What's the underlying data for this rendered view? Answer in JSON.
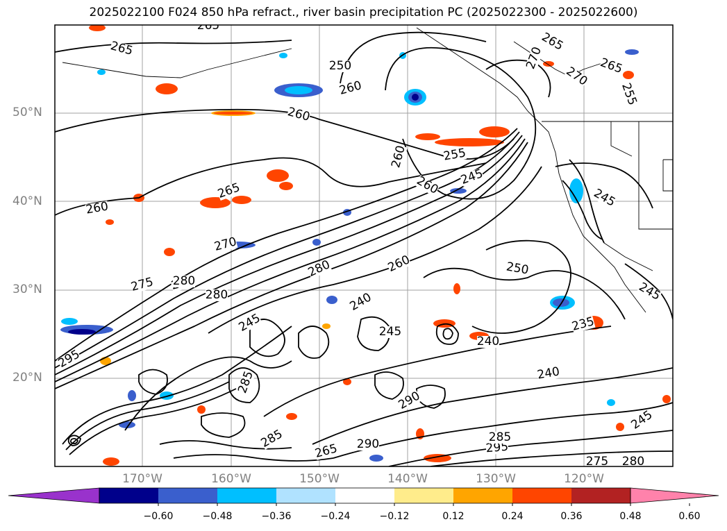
{
  "title": "2025022100 F024 850 hPa refract., river basin precipitation PC (2025022300 - 2025022600)",
  "map": {
    "projection": "plate carree",
    "lat_range": [
      "10°N",
      "60°N"
    ],
    "lon_range": [
      "180°",
      "110°W"
    ],
    "grid": true,
    "lat_labels": [
      "50°N",
      "40°N",
      "30°N",
      "20°N"
    ],
    "lon_labels": [
      "170°W",
      "160°W",
      "150°W",
      "140°W",
      "130°W",
      "120°W"
    ],
    "contour_labels": [
      {
        "text": "265"
      },
      {
        "text": "265"
      },
      {
        "text": "260"
      },
      {
        "text": "260"
      },
      {
        "text": "260"
      },
      {
        "text": "265"
      },
      {
        "text": "270"
      },
      {
        "text": "275"
      },
      {
        "text": "290"
      },
      {
        "text": "280"
      },
      {
        "text": "280"
      },
      {
        "text": "260"
      },
      {
        "text": "250"
      },
      {
        "text": "255"
      },
      {
        "text": "245"
      },
      {
        "text": "260"
      },
      {
        "text": "270"
      },
      {
        "text": "265"
      },
      {
        "text": "270"
      },
      {
        "text": "265"
      },
      {
        "text": "260"
      },
      {
        "text": "255"
      },
      {
        "text": "245"
      },
      {
        "text": "250"
      },
      {
        "text": "245"
      },
      {
        "text": "240"
      },
      {
        "text": "245"
      },
      {
        "text": "240"
      },
      {
        "text": "235"
      },
      {
        "text": "240"
      },
      {
        "text": "245"
      },
      {
        "text": "285"
      },
      {
        "text": "295"
      },
      {
        "text": "280"
      },
      {
        "text": "285"
      },
      {
        "text": "290"
      },
      {
        "text": "295"
      },
      {
        "text": "275"
      },
      {
        "text": "280"
      },
      {
        "text": "245"
      },
      {
        "text": "285"
      },
      {
        "text": "290"
      },
      {
        "text": "265"
      }
    ]
  },
  "colorbar": {
    "ticks": [
      "−0.60",
      "−0.48",
      "−0.36",
      "−0.24",
      "−0.12",
      "0.12",
      "0.24",
      "0.36",
      "0.48",
      "0.60"
    ],
    "colors": [
      "#9932CC",
      "#00008B",
      "#3A5FCD",
      "#00BFFF",
      "#B0E2FF",
      "#FFFFFF",
      "#FFEC8B",
      "#FFA500",
      "#FF4500",
      "#B22222",
      "#FF82AB"
    ]
  }
}
